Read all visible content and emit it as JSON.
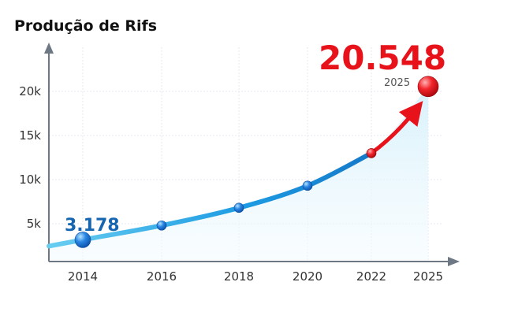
{
  "chart_data": {
    "type": "line",
    "title": "Produção de Rifs",
    "categories": [
      "2014",
      "2016",
      "2018",
      "2020",
      "2022",
      "2025"
    ],
    "x_ticks": [
      "2014",
      "2016",
      "2018",
      "2020",
      "2022",
      "2025"
    ],
    "y_ticks": [
      "5k",
      "10k",
      "15k",
      "20k"
    ],
    "points": [
      {
        "x": 2014,
        "y": 3178
      },
      {
        "x": 2016,
        "y": 4800
      },
      {
        "x": 2018,
        "y": 6800
      },
      {
        "x": 2020,
        "y": 9300
      },
      {
        "x": 2022,
        "y": 13000
      },
      {
        "x": 2025,
        "y": 20548
      }
    ],
    "ylim": [
      0,
      22000
    ],
    "grid": true,
    "annotations": {
      "start_value": "3.178",
      "end_value": "20.548",
      "end_year": "2025"
    },
    "colors": {
      "line": "#1a8fd8",
      "area": "#e7f6fd",
      "marker": "#1f6fd0",
      "highlight": "#e8121b",
      "start_label": "#1565b0"
    }
  }
}
